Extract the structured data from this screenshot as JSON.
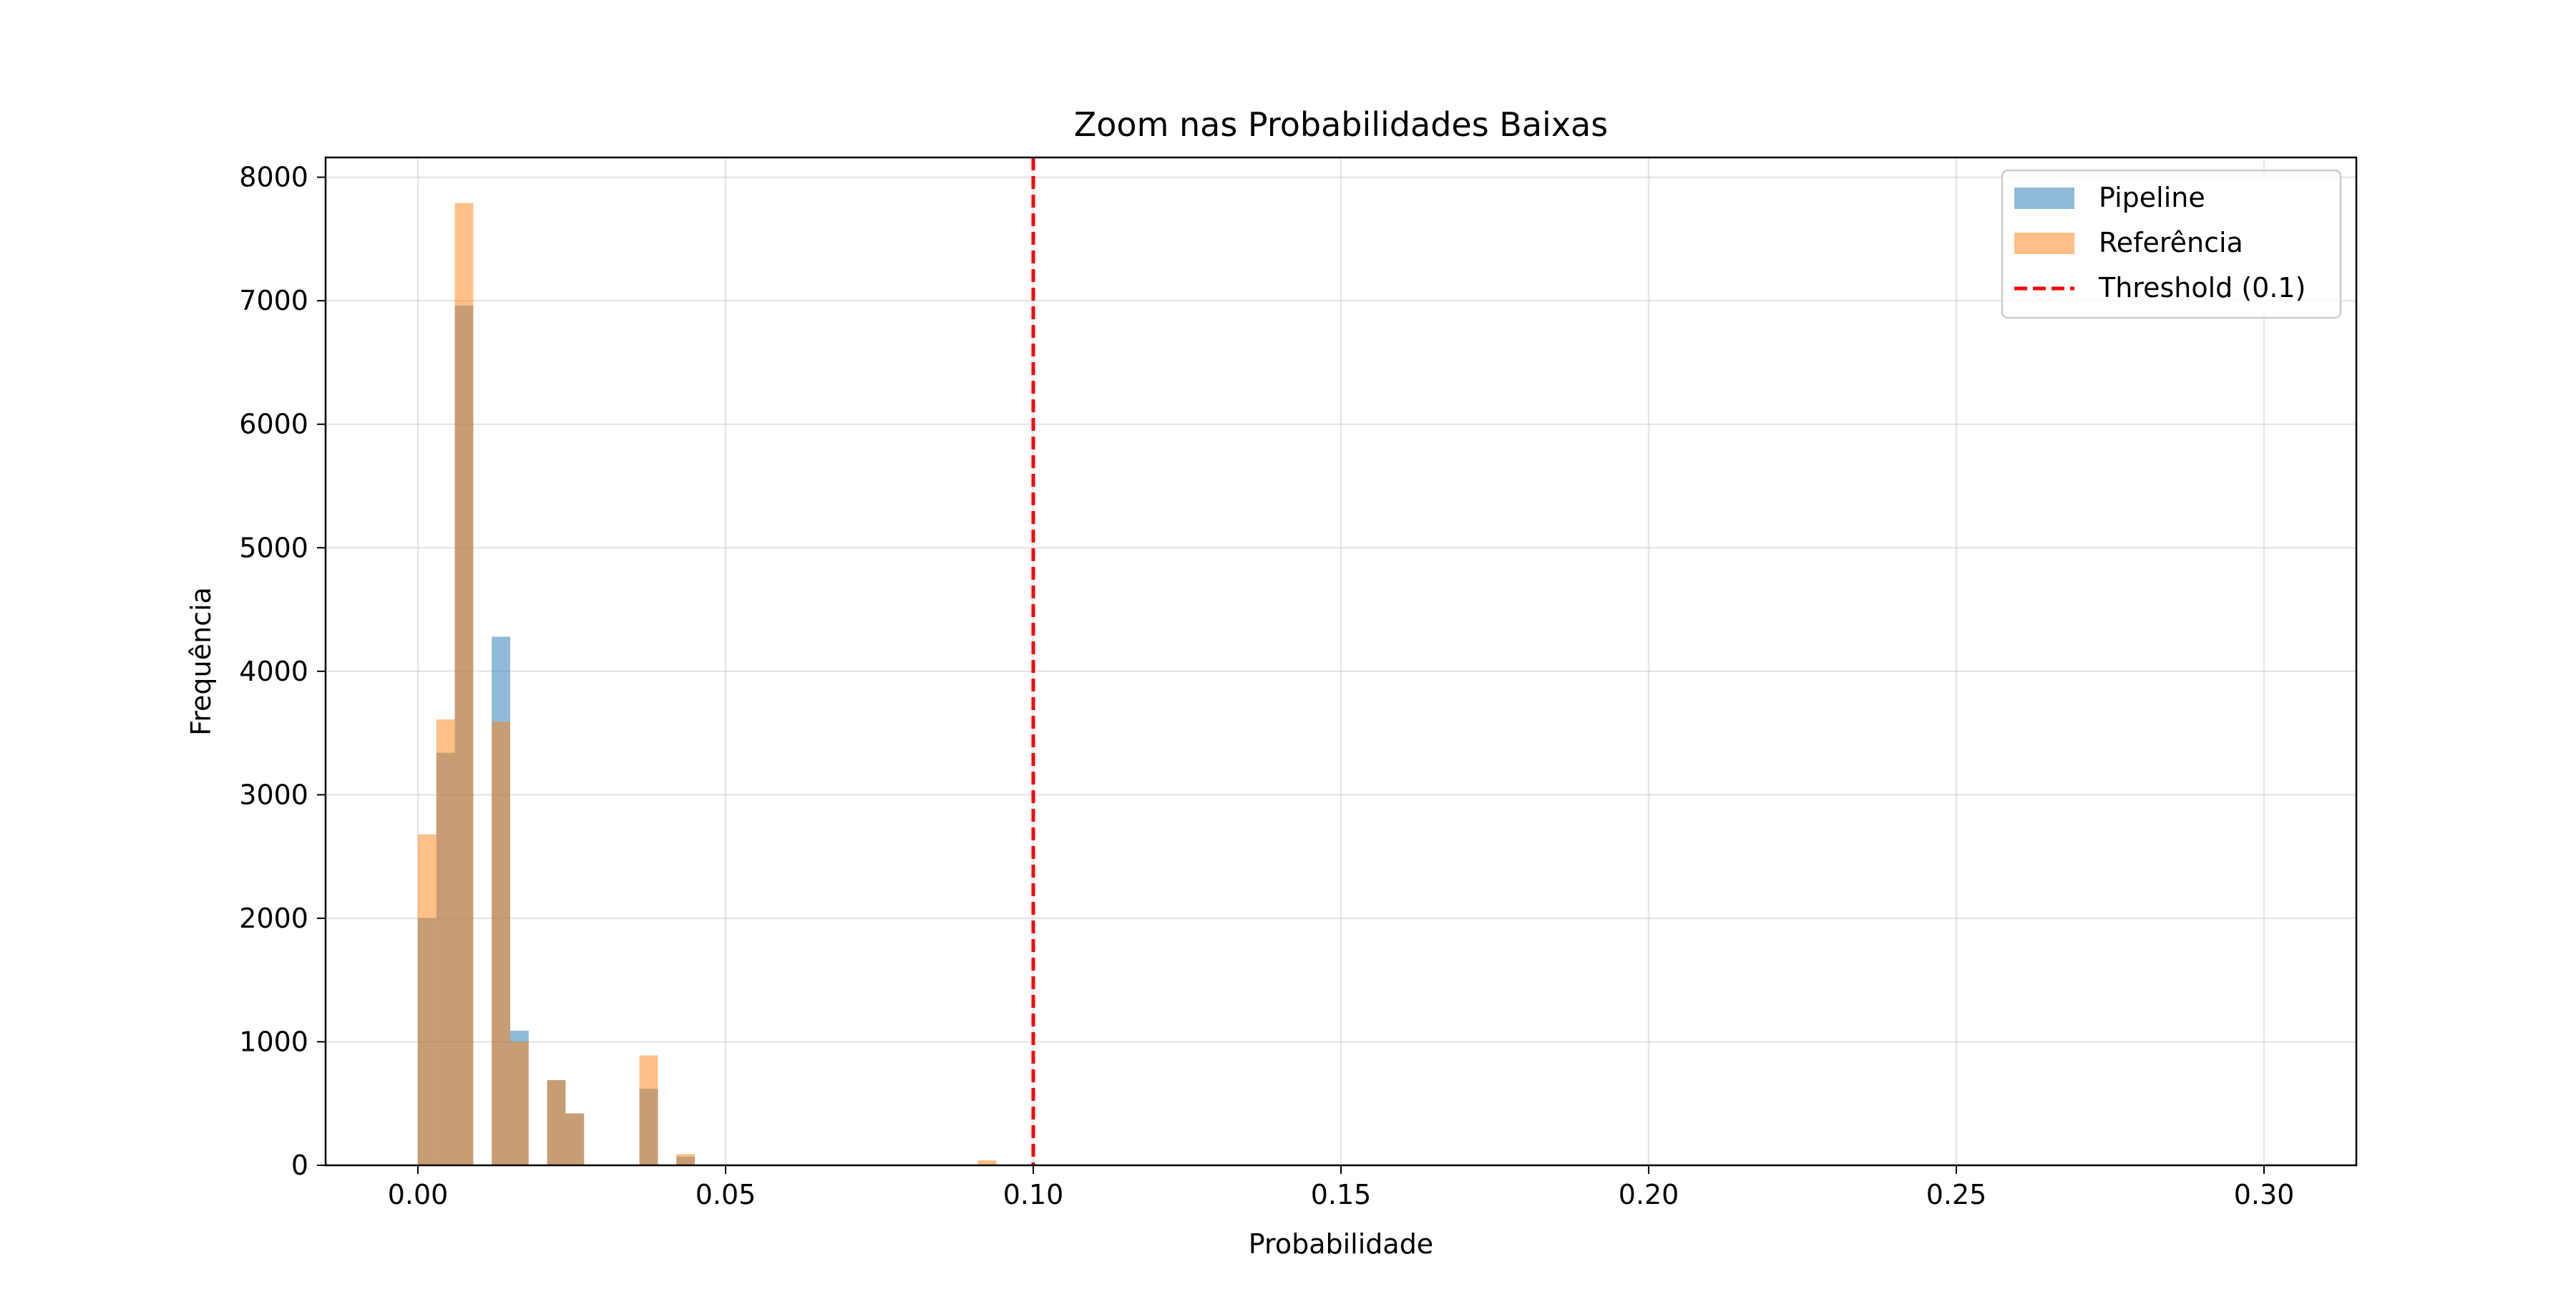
{
  "chart_data": {
    "type": "bar",
    "title": "Zoom nas Probabilidades Baixas",
    "xlabel": "Probabilidade",
    "ylabel": "Frequência",
    "xlim": [
      -0.015,
      0.315
    ],
    "ylim": [
      0,
      8160
    ],
    "x_ticks": [
      0.0,
      0.05,
      0.1,
      0.15,
      0.2,
      0.25,
      0.3
    ],
    "x_tick_labels": [
      "0.00",
      "0.05",
      "0.10",
      "0.15",
      "0.20",
      "0.25",
      "0.30"
    ],
    "y_ticks": [
      0,
      1000,
      2000,
      3000,
      4000,
      5000,
      6000,
      7000,
      8000
    ],
    "y_tick_labels": [
      "0",
      "1000",
      "2000",
      "3000",
      "4000",
      "5000",
      "6000",
      "7000",
      "8000"
    ],
    "grid": true,
    "legend_position": "top-right",
    "bin_width": 0.003,
    "series": [
      {
        "name": "Pipeline",
        "color": "#1f77b4",
        "alpha": 0.5,
        "bins": [
          {
            "x0": 0.0,
            "count": 2000
          },
          {
            "x0": 0.003,
            "count": 3340
          },
          {
            "x0": 0.006,
            "count": 6960
          },
          {
            "x0": 0.012,
            "count": 4280
          },
          {
            "x0": 0.015,
            "count": 1090
          },
          {
            "x0": 0.021,
            "count": 690
          },
          {
            "x0": 0.024,
            "count": 420
          },
          {
            "x0": 0.036,
            "count": 620
          },
          {
            "x0": 0.042,
            "count": 70
          }
        ]
      },
      {
        "name": "Referência",
        "color": "#ff7f0e",
        "alpha": 0.5,
        "bins": [
          {
            "x0": 0.0,
            "count": 2680
          },
          {
            "x0": 0.003,
            "count": 3610
          },
          {
            "x0": 0.006,
            "count": 7790
          },
          {
            "x0": 0.012,
            "count": 3590
          },
          {
            "x0": 0.015,
            "count": 1000
          },
          {
            "x0": 0.021,
            "count": 690
          },
          {
            "x0": 0.024,
            "count": 420
          },
          {
            "x0": 0.036,
            "count": 890
          },
          {
            "x0": 0.042,
            "count": 90
          },
          {
            "x0": 0.091,
            "count": 40
          }
        ]
      }
    ],
    "threshold": {
      "label": "Threshold (0.1)",
      "value": 0.1,
      "color": "#ff0000",
      "style": "dashed"
    }
  }
}
